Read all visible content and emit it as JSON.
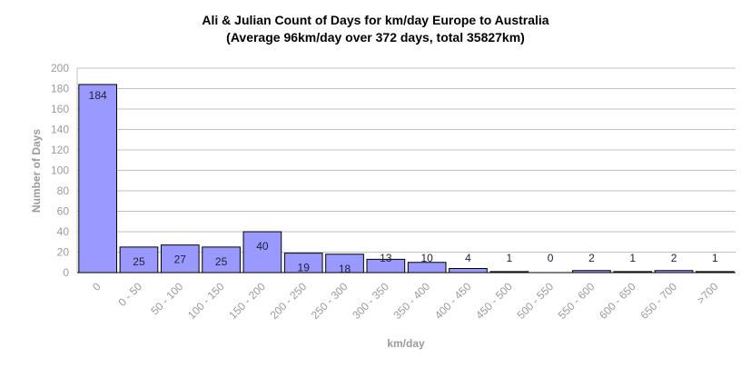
{
  "chart_data": {
    "type": "bar",
    "title": "Ali & Julian Count of Days for km/day Europe to Australia",
    "subtitle": "(Average 96km/day over 372 days, total 35827km)",
    "xlabel": "km/day",
    "ylabel": "Number of Days",
    "categories": [
      "0",
      "0 - 50",
      "50 - 100",
      "100 - 150",
      "150 - 200",
      "200 - 250",
      "250 - 300",
      "300 - 350",
      "350 - 400",
      "400 - 450",
      "450 - 500",
      "500 - 550",
      "550 - 600",
      "600 - 650",
      "650 - 700",
      ">700"
    ],
    "values": [
      184,
      25,
      27,
      25,
      40,
      19,
      18,
      13,
      10,
      4,
      1,
      0,
      2,
      1,
      2,
      1
    ],
    "ylim": [
      0,
      200
    ],
    "yticks": [
      0,
      20,
      40,
      60,
      80,
      100,
      120,
      140,
      160,
      180,
      200
    ],
    "grid": true,
    "legend": "none",
    "colors": {
      "bar_fill": "#9999ff",
      "bar_stroke": "#000000",
      "grid": "#c0c0c0",
      "tick_text": "#9a9a9a",
      "label_text": "#1f1f3a"
    }
  }
}
